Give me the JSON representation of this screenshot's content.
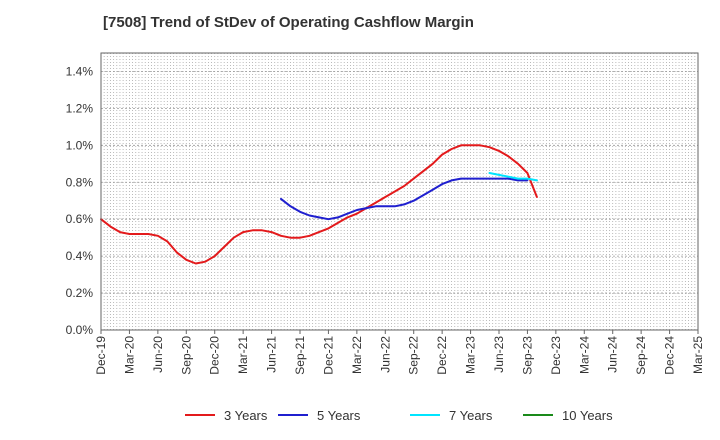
{
  "chart_data": {
    "type": "line",
    "title": "[7508]  Trend of StDev of Operating Cashflow Margin",
    "xlabel": "",
    "ylabel": "",
    "y_format": "percent",
    "ylim": [
      0,
      1.5
    ],
    "y_ticks": [
      0.0,
      0.2,
      0.4,
      0.6,
      0.8,
      1.0,
      1.2,
      1.4
    ],
    "y_tick_labels": [
      "0.0%",
      "0.2%",
      "0.4%",
      "0.6%",
      "0.8%",
      "1.0%",
      "1.2%",
      "1.4%"
    ],
    "x_ticks": [
      "Dec-19",
      "Mar-20",
      "Jun-20",
      "Sep-20",
      "Dec-20",
      "Mar-21",
      "Jun-21",
      "Sep-21",
      "Dec-21",
      "Mar-22",
      "Jun-22",
      "Sep-22",
      "Dec-22",
      "Mar-23",
      "Jun-23",
      "Sep-23",
      "Dec-23",
      "Mar-24",
      "Jun-24",
      "Sep-24",
      "Dec-24",
      "Mar-25"
    ],
    "grid": true,
    "legend_position": "bottom",
    "series": [
      {
        "name": "3 Years",
        "color": "#e31a1c",
        "start_index": 0,
        "values": [
          0.6,
          0.56,
          0.53,
          0.52,
          0.52,
          0.52,
          0.51,
          0.48,
          0.42,
          0.38,
          0.36,
          0.37,
          0.4,
          0.45,
          0.5,
          0.53,
          0.54,
          0.54,
          0.53,
          0.51,
          0.5,
          0.5,
          0.51,
          0.53,
          0.55,
          0.58,
          0.61,
          0.63,
          0.66,
          0.69,
          0.72,
          0.75,
          0.78,
          0.82,
          0.86,
          0.9,
          0.95,
          0.98,
          1.0,
          1.0,
          1.0,
          0.99,
          0.97,
          0.94,
          0.9,
          0.85,
          0.72
        ]
      },
      {
        "name": "5 Years",
        "color": "#1f1fcf",
        "start_index": 19,
        "values": [
          0.71,
          0.67,
          0.64,
          0.62,
          0.61,
          0.6,
          0.61,
          0.63,
          0.65,
          0.66,
          0.67,
          0.67,
          0.67,
          0.68,
          0.7,
          0.73,
          0.76,
          0.79,
          0.81,
          0.82,
          0.82,
          0.82,
          0.82,
          0.82,
          0.82,
          0.81,
          0.81
        ]
      },
      {
        "name": "7 Years",
        "color": "#00e5ff",
        "start_index": 41,
        "values": [
          0.85,
          0.84,
          0.83,
          0.82,
          0.82,
          0.81
        ]
      },
      {
        "name": "10 Years",
        "color": "#1a8a1a",
        "start_index": 0,
        "values": []
      }
    ]
  }
}
